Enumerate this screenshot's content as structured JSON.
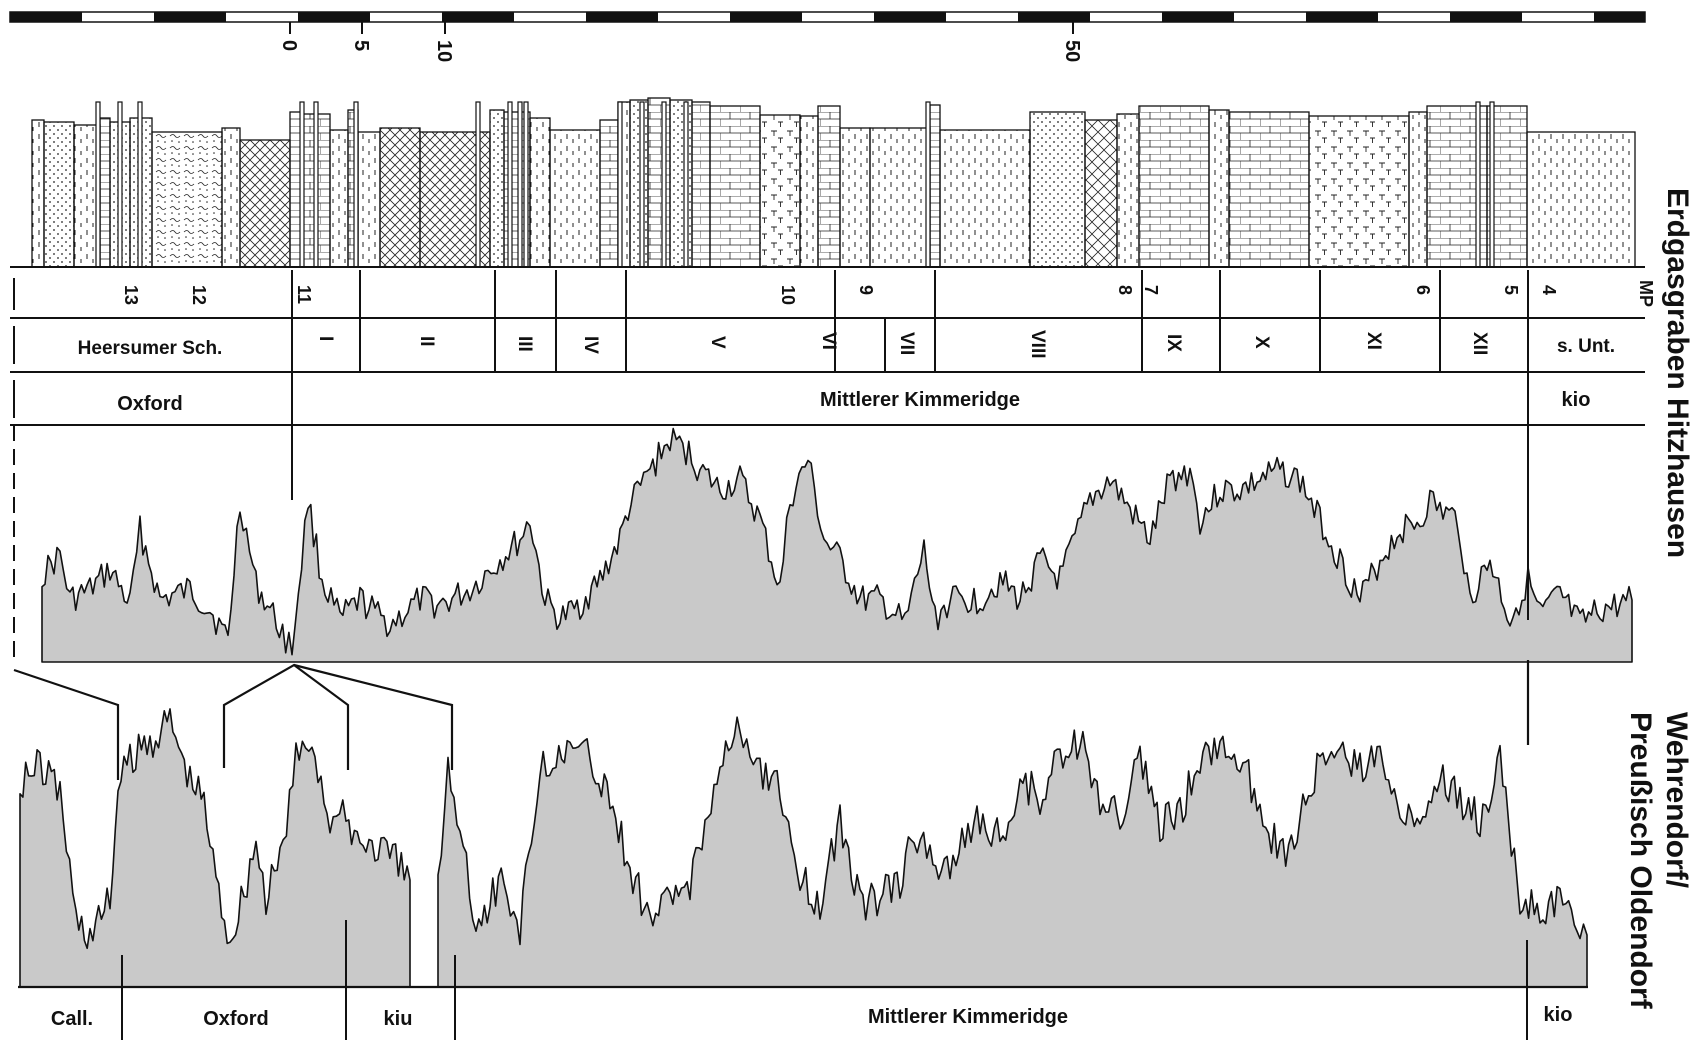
{
  "scale": {
    "ticks": [
      "0",
      "5",
      "10",
      "50"
    ]
  },
  "upper_section": {
    "title": "Erdgasgraben Hitzhausen",
    "marker_points": [
      "13",
      "12",
      "11",
      "10",
      "9",
      "8",
      "7",
      "6",
      "5",
      "4",
      "MP"
    ],
    "units": [
      "Heersumer Sch.",
      "I",
      "II",
      "III",
      "IV",
      "V",
      "VI",
      "VII",
      "VIII",
      "IX",
      "X",
      "XI",
      "XII",
      "s. Unt."
    ],
    "stages": [
      "Oxford",
      "Mittlerer Kimmeridge",
      "kio"
    ]
  },
  "lower_section": {
    "title_line1": "Wehrendorf/",
    "title_line2": "Preußisch Oldendorf",
    "stages": [
      "Call.",
      "Oxford",
      "kiu",
      "Mittlerer Kimmeridge",
      "kio"
    ]
  },
  "colors": {
    "ink": "#111111",
    "curve_fill": "#c9c9c9",
    "paper": "#ffffff"
  }
}
